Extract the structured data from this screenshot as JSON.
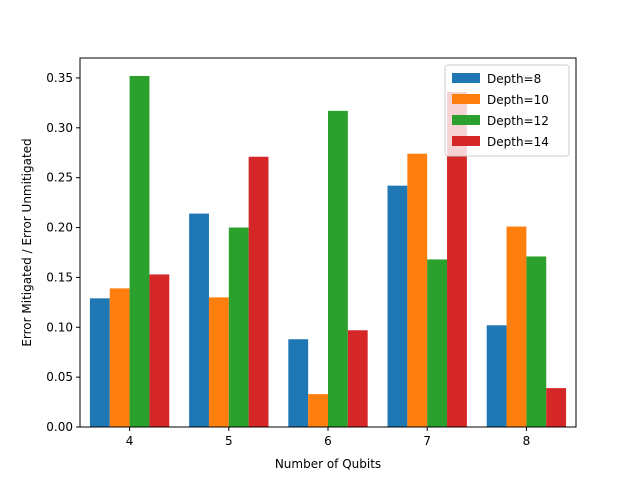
{
  "chart_data": {
    "type": "bar",
    "title": "",
    "xlabel": "Number of Qubits",
    "ylabel": "Error Mitigated / Error Unmitigated",
    "categories": [
      "4",
      "5",
      "6",
      "7",
      "8"
    ],
    "ylim": [
      0,
      0.37
    ],
    "yticks": [
      "0.00",
      "0.05",
      "0.10",
      "0.15",
      "0.20",
      "0.25",
      "0.30",
      "0.35"
    ],
    "grid": false,
    "legend_position": "top-right",
    "series": [
      {
        "name": "Depth=8",
        "color": "#1f77b4",
        "values": [
          0.129,
          0.214,
          0.088,
          0.242,
          0.102
        ]
      },
      {
        "name": "Depth=10",
        "color": "#ff7f0e",
        "values": [
          0.139,
          0.13,
          0.033,
          0.274,
          0.201
        ]
      },
      {
        "name": "Depth=12",
        "color": "#2ca02c",
        "values": [
          0.352,
          0.2,
          0.317,
          0.168,
          0.171
        ]
      },
      {
        "name": "Depth=14",
        "color": "#d62728",
        "values": [
          0.153,
          0.271,
          0.097,
          0.336,
          0.039
        ]
      }
    ]
  }
}
